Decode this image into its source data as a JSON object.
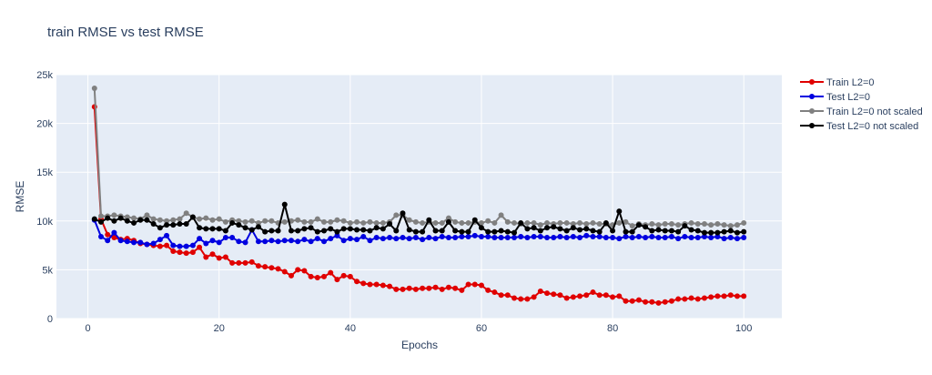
{
  "chart_data": {
    "type": "line",
    "title": "train RMSE vs test RMSE",
    "xlabel": "Epochs",
    "ylabel": "RMSE",
    "xlim": [
      -4.8,
      105.8
    ],
    "ylim": [
      0,
      25000
    ],
    "x_ticks": [
      0,
      20,
      40,
      60,
      80,
      100
    ],
    "y_ticks": [
      0,
      5000,
      10000,
      15000,
      20000,
      25000
    ],
    "y_tick_labels": [
      "0",
      "5k",
      "10k",
      "15k",
      "20k",
      "25k"
    ],
    "grid": true,
    "legend_position": "top-right",
    "x": [
      1,
      2,
      3,
      4,
      5,
      6,
      7,
      8,
      9,
      10,
      11,
      12,
      13,
      14,
      15,
      16,
      17,
      18,
      19,
      20,
      21,
      22,
      23,
      24,
      25,
      26,
      27,
      28,
      29,
      30,
      31,
      32,
      33,
      34,
      35,
      36,
      37,
      38,
      39,
      40,
      41,
      42,
      43,
      44,
      45,
      46,
      47,
      48,
      49,
      50,
      51,
      52,
      53,
      54,
      55,
      56,
      57,
      58,
      59,
      60,
      61,
      62,
      63,
      64,
      65,
      66,
      67,
      68,
      69,
      70,
      71,
      72,
      73,
      74,
      75,
      76,
      77,
      78,
      79,
      80,
      81,
      82,
      83,
      84,
      85,
      86,
      87,
      88,
      89,
      90,
      91,
      92,
      93,
      94,
      95,
      96,
      97,
      98,
      99,
      100
    ],
    "series": [
      {
        "name": "Train L2=0",
        "color": "#e00000",
        "values": [
          21700,
          10200,
          8600,
          8300,
          8100,
          8200,
          8000,
          7700,
          7600,
          7500,
          7400,
          7500,
          6900,
          6800,
          6700,
          6800,
          7300,
          6300,
          6600,
          6200,
          6300,
          5700,
          5700,
          5700,
          5800,
          5400,
          5300,
          5200,
          5100,
          4800,
          4400,
          5000,
          4900,
          4300,
          4200,
          4300,
          4700,
          4000,
          4400,
          4300,
          3800,
          3600,
          3500,
          3500,
          3400,
          3300,
          3000,
          3000,
          3100,
          3000,
          3100,
          3100,
          3200,
          3000,
          3200,
          3100,
          2900,
          3500,
          3500,
          3400,
          2900,
          2700,
          2400,
          2400,
          2100,
          2000,
          2000,
          2200,
          2800,
          2600,
          2500,
          2400,
          2100,
          2200,
          2300,
          2400,
          2700,
          2400,
          2400,
          2200,
          2300,
          1800,
          1800,
          1900,
          1700,
          1700,
          1600,
          1700,
          1800,
          2000,
          2000,
          2100,
          2000,
          2100,
          2200,
          2300,
          2300,
          2400,
          2300,
          2300
        ]
      },
      {
        "name": "Test L2=0",
        "color": "#0000e0",
        "values": [
          10100,
          8400,
          8000,
          8800,
          8000,
          7900,
          7800,
          7800,
          7600,
          7700,
          8100,
          8500,
          7500,
          7400,
          7400,
          7500,
          8200,
          7700,
          8000,
          7800,
          8300,
          8300,
          7900,
          7800,
          9100,
          7900,
          7900,
          8000,
          7900,
          8000,
          8000,
          7900,
          8100,
          7900,
          8200,
          7900,
          8200,
          8500,
          8000,
          8200,
          8100,
          8400,
          8000,
          8300,
          8200,
          8300,
          8200,
          8300,
          8200,
          8300,
          8100,
          8300,
          8200,
          8400,
          8300,
          8300,
          8400,
          8400,
          8500,
          8400,
          8400,
          8300,
          8300,
          8300,
          8300,
          8400,
          8300,
          8400,
          8400,
          8300,
          8300,
          8400,
          8300,
          8400,
          8300,
          8500,
          8400,
          8400,
          8300,
          8300,
          8200,
          8400,
          8300,
          8400,
          8300,
          8400,
          8300,
          8300,
          8400,
          8200,
          8400,
          8300,
          8300,
          8400,
          8300,
          8400,
          8200,
          8300,
          8200,
          8300
        ]
      },
      {
        "name": "Train L2=0 not scaled",
        "color": "#808080",
        "values": [
          23600,
          10500,
          10500,
          10600,
          10500,
          10400,
          10300,
          10200,
          10600,
          10200,
          10100,
          10000,
          10100,
          10200,
          10800,
          10400,
          10200,
          10300,
          10100,
          10200,
          9900,
          10100,
          10000,
          9900,
          10000,
          9800,
          10000,
          10000,
          9800,
          9900,
          10000,
          10100,
          9900,
          9900,
          10200,
          9900,
          9900,
          10100,
          10000,
          9800,
          9900,
          9800,
          9900,
          9800,
          9800,
          9900,
          10600,
          10600,
          10100,
          9900,
          9800,
          9900,
          9800,
          9800,
          10300,
          9900,
          9800,
          9800,
          9900,
          9800,
          10000,
          9800,
          10600,
          9900,
          9800,
          9700,
          9800,
          9800,
          9600,
          9800,
          9700,
          9800,
          9800,
          9700,
          9800,
          9700,
          9800,
          9700,
          9700,
          9600,
          9800,
          9900,
          9500,
          9700,
          9600,
          9700,
          9600,
          9700,
          9700,
          9600,
          9700,
          9800,
          9700,
          9700,
          9600,
          9700,
          9600,
          9500,
          9600,
          9800
        ]
      },
      {
        "name": "Test L2=0 not scaled",
        "color": "#000000",
        "values": [
          10200,
          9900,
          10300,
          10000,
          10300,
          10000,
          9800,
          10100,
          10100,
          9700,
          9300,
          9600,
          9600,
          9700,
          9700,
          10400,
          9300,
          9200,
          9200,
          9200,
          9000,
          9800,
          9600,
          9300,
          9100,
          9400,
          8900,
          9000,
          9000,
          11700,
          9000,
          9000,
          9200,
          9300,
          8900,
          9000,
          9200,
          8900,
          9200,
          9200,
          9100,
          9100,
          9000,
          9300,
          9200,
          9700,
          9000,
          10800,
          9100,
          8900,
          8900,
          10100,
          9000,
          9000,
          9900,
          9000,
          8900,
          8900,
          10100,
          9300,
          8900,
          8900,
          9000,
          8900,
          8800,
          9800,
          9200,
          9300,
          9000,
          9300,
          9400,
          9200,
          9000,
          9300,
          9100,
          9200,
          9000,
          8900,
          9800,
          9000,
          11000,
          8900,
          8900,
          9600,
          9400,
          9000,
          9100,
          9000,
          9000,
          8900,
          9500,
          9100,
          9000,
          8800,
          8800,
          8800,
          8900,
          9000,
          8800,
          8900
        ]
      }
    ]
  }
}
